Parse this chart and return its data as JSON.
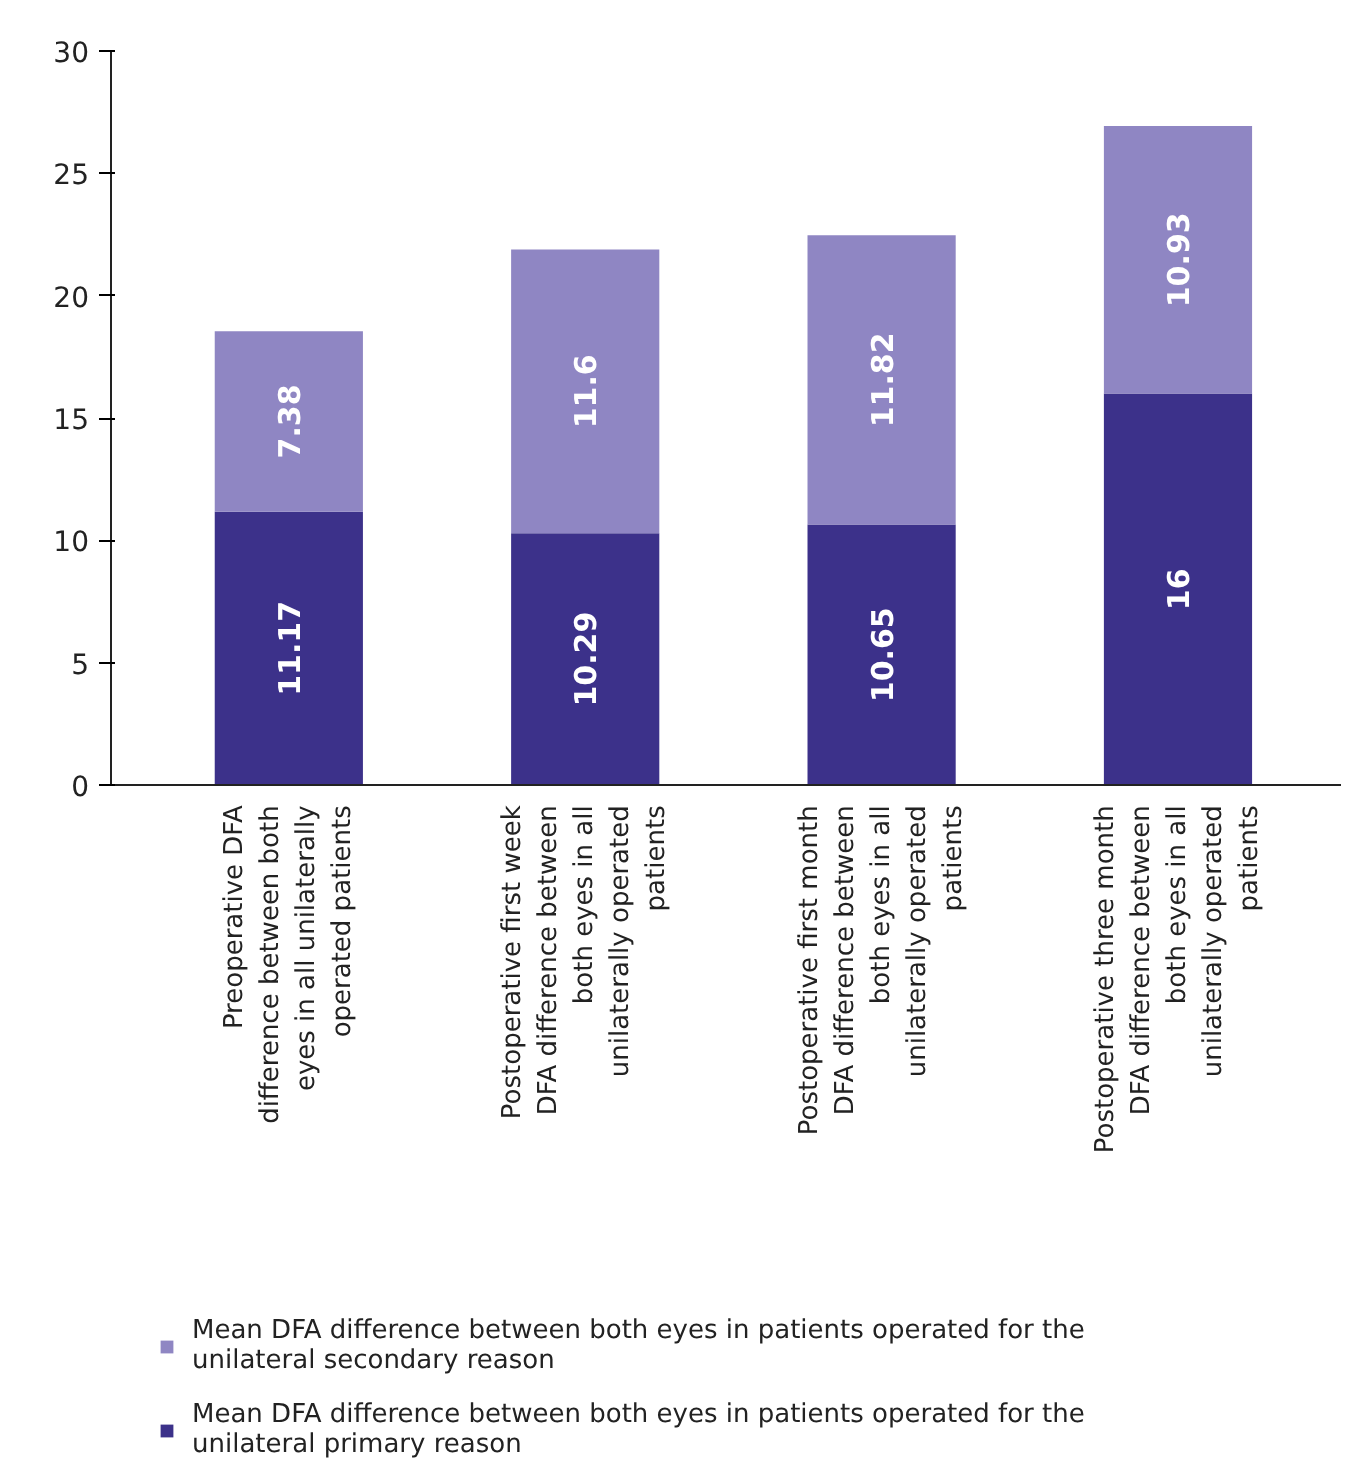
{
  "chart_data": {
    "type": "bar",
    "stacked": true,
    "categories": [
      "Preoperative DFA difference between both eyes in all unilaterally operated patients",
      "Postoperative first week DFA difference between both eyes in all unilaterally operated patients",
      "Postoperative first month DFA difference between both eyes in all unilaterally operated patients",
      "Postoperative three month DFA difference between both eyes in all unilaterally operated patients"
    ],
    "series": [
      {
        "name": "Mean DFA difference between both eyes in patients operated for the unilateral primary reason",
        "color": "#3c318a",
        "values": [
          11.17,
          10.29,
          10.65,
          16
        ]
      },
      {
        "name": "Mean DFA difference between both eyes in patients operated for the unilateral secondary reason",
        "color": "#8f86c3",
        "values": [
          7.38,
          11.6,
          11.82,
          10.93
        ]
      }
    ],
    "ylim": [
      0,
      30
    ],
    "yticks": [
      0,
      5,
      10,
      15,
      20,
      25,
      30
    ],
    "grid": false,
    "legend": "bottom",
    "data_labels": true
  }
}
